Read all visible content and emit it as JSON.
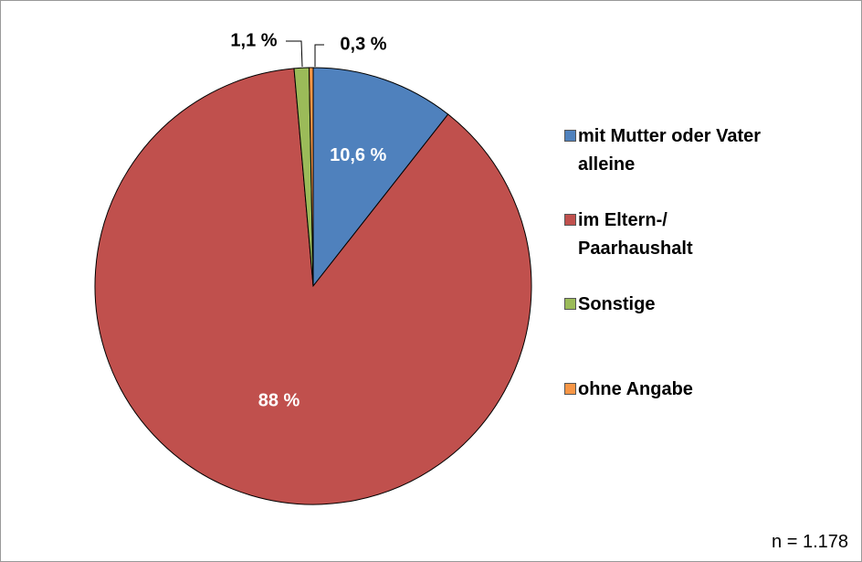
{
  "chart_data": {
    "type": "pie",
    "categories": [
      "mit Mutter oder Vater\nalleine",
      "im Eltern-/\nPaarhaushalt",
      "Sonstige",
      "ohne Angabe"
    ],
    "values": [
      10.6,
      88,
      1.1,
      0.3
    ],
    "value_labels": [
      "10,6 %",
      "88 %",
      "1,1 %",
      "0,3 %"
    ],
    "colors": [
      "#4f81bd",
      "#c0504d",
      "#9bbb59",
      "#f79646"
    ],
    "annotation": "n = 1.178",
    "legend": "right"
  }
}
